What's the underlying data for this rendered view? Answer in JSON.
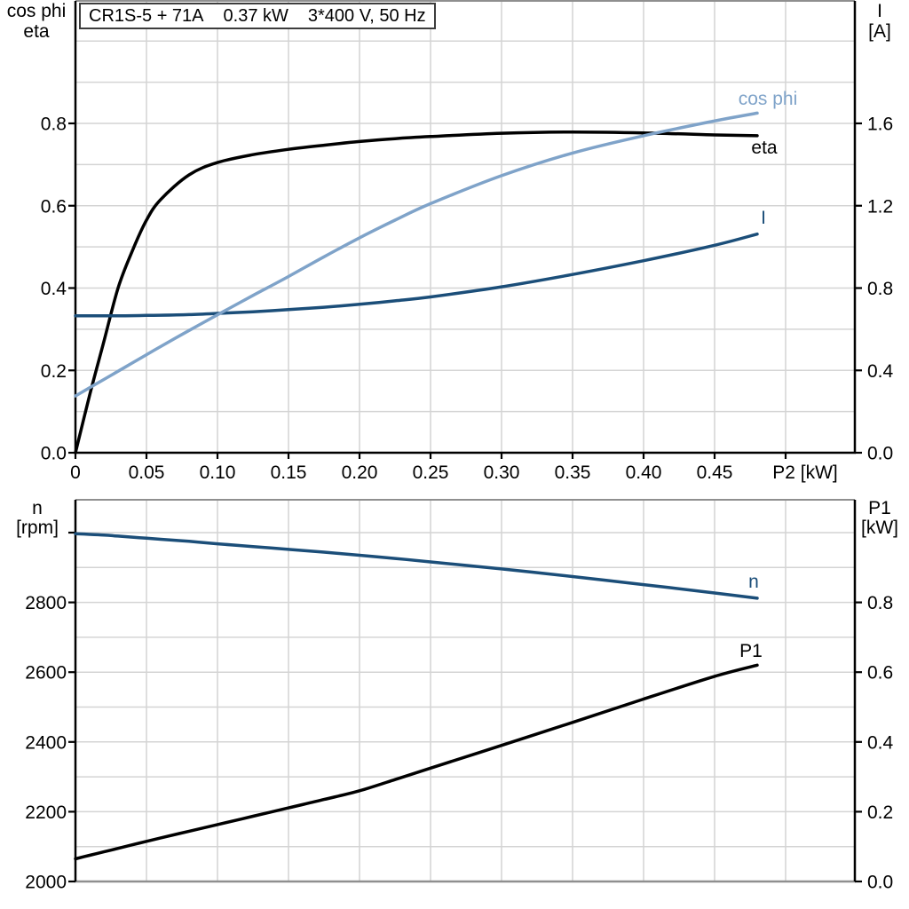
{
  "title_box": {
    "model": "CR1S-5 + 71A",
    "power": "0.37 kW",
    "supply": "3*400 V, 50 Hz"
  },
  "axis_corner_labels": {
    "top_left_line1": "cos phi",
    "top_left_line2": "eta",
    "top_right_line1": "I",
    "top_right_line2": "[A]",
    "bottom_left_line1": "n",
    "bottom_left_line2": "[rpm]",
    "bottom_right_line1": "P1",
    "bottom_right_line2": "[kW]"
  },
  "colors": {
    "black": "#000000",
    "dark_blue": "#1b4e79",
    "light_blue": "#7fa3c9",
    "grid": "#d4d4d4",
    "frame_gray": "#8f8f8f",
    "title_border": "#3d3d3d"
  },
  "chart_data": [
    {
      "type": "line",
      "title": "CR1S-5 + 71A  0.37 kW  3*400 V, 50 Hz",
      "xlabel": "P2 [kW]",
      "xlim": [
        0,
        0.549
      ],
      "x_tick_values": [
        0,
        0.05,
        0.1,
        0.15,
        0.2,
        0.25,
        0.3,
        0.35,
        0.4,
        0.45,
        0.5
      ],
      "x_tick_labels": [
        "0",
        "0.05",
        "0.10",
        "0.15",
        "0.20",
        "0.25",
        "0.30",
        "0.35",
        "0.40",
        "0.45",
        ""
      ],
      "left_axis": {
        "label": "cos phi / eta",
        "lim": [
          0,
          1.097
        ],
        "tick_values": [
          0,
          0.2,
          0.4,
          0.6,
          0.8
        ],
        "tick_labels": [
          "0.0",
          "0.2",
          "0.4",
          "0.6",
          "0.8"
        ]
      },
      "right_axis": {
        "label": "I [A]",
        "lim": [
          0,
          2.194
        ],
        "tick_values": [
          0,
          0.4,
          0.8,
          1.2,
          1.6
        ],
        "tick_labels": [
          "0.0",
          "0.4",
          "0.8",
          "1.2",
          "1.6"
        ]
      },
      "x": [
        0,
        0.01,
        0.02,
        0.03,
        0.04,
        0.05,
        0.06,
        0.08,
        0.1,
        0.125,
        0.15,
        0.175,
        0.2,
        0.225,
        0.25,
        0.3,
        0.35,
        0.4,
        0.45,
        0.48
      ],
      "series": [
        {
          "name": "eta",
          "axis": "left",
          "color": "black",
          "values": [
            0,
            0.14,
            0.27,
            0.4,
            0.49,
            0.565,
            0.615,
            0.675,
            0.705,
            0.724,
            0.737,
            0.747,
            0.756,
            0.763,
            0.768,
            0.776,
            0.779,
            0.777,
            0.772,
            0.77
          ]
        },
        {
          "name": "I",
          "axis": "right",
          "color": "dark_blue",
          "values": [
            0.665,
            0.665,
            0.665,
            0.665,
            0.666,
            0.667,
            0.668,
            0.671,
            0.677,
            0.685,
            0.695,
            0.707,
            0.721,
            0.738,
            0.757,
            0.806,
            0.866,
            0.933,
            1.008,
            1.062
          ]
        },
        {
          "name": "cos phi",
          "axis": "left",
          "color": "light_blue",
          "values": [
            0.138,
            0.158,
            0.178,
            0.198,
            0.218,
            0.238,
            0.258,
            0.297,
            0.335,
            0.382,
            0.428,
            0.476,
            0.522,
            0.565,
            0.605,
            0.673,
            0.728,
            0.77,
            0.806,
            0.825
          ]
        }
      ]
    },
    {
      "type": "line",
      "title": "",
      "xlabel": "",
      "xlim": [
        0,
        0.549
      ],
      "x_tick_values": [
        0,
        0.05,
        0.1,
        0.15,
        0.2,
        0.25,
        0.3,
        0.35,
        0.4,
        0.45,
        0.5
      ],
      "x_tick_labels": [],
      "left_axis": {
        "label": "n [rpm]",
        "lim": [
          2000,
          3093
        ],
        "tick_values": [
          2000,
          2200,
          2400,
          2600,
          2800,
          3000
        ],
        "tick_labels": [
          "2000",
          "2200",
          "2400",
          "2600",
          "2800",
          ""
        ]
      },
      "right_axis": {
        "label": "P1 [kW]",
        "lim": [
          0,
          1.094
        ],
        "tick_values": [
          0,
          0.2,
          0.4,
          0.6,
          0.8
        ],
        "tick_labels": [
          "0.0",
          "0.2",
          "0.4",
          "0.6",
          "0.8"
        ]
      },
      "x": [
        0,
        0.01,
        0.02,
        0.03,
        0.04,
        0.05,
        0.06,
        0.08,
        0.1,
        0.125,
        0.15,
        0.175,
        0.2,
        0.225,
        0.25,
        0.3,
        0.35,
        0.4,
        0.45,
        0.48
      ],
      "series": [
        {
          "name": "n",
          "axis": "left",
          "color": "dark_blue",
          "values": [
            2997,
            2995,
            2993,
            2990,
            2987,
            2984,
            2981,
            2975,
            2968,
            2960,
            2952,
            2944,
            2935,
            2926,
            2916,
            2896,
            2874,
            2851,
            2827,
            2812
          ]
        },
        {
          "name": "P1",
          "axis": "right",
          "color": "black",
          "values": [
            0.065,
            0.075,
            0.085,
            0.095,
            0.105,
            0.115,
            0.125,
            0.144,
            0.163,
            0.187,
            0.211,
            0.235,
            0.26,
            0.292,
            0.325,
            0.39,
            0.456,
            0.523,
            0.588,
            0.62
          ]
        }
      ]
    }
  ]
}
